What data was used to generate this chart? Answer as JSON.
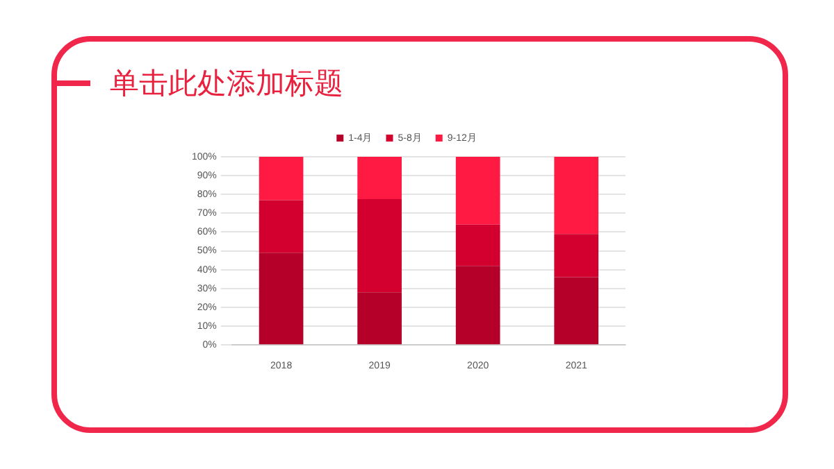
{
  "chart_data": {
    "type": "bar",
    "title": "单击此处添加标题",
    "stacked": true,
    "categories": [
      "2018",
      "2019",
      "2020",
      "2021"
    ],
    "series": [
      {
        "name": "1-4月",
        "color": "#b5002a",
        "values": [
          49,
          28,
          42,
          36
        ]
      },
      {
        "name": "5-8月",
        "color": "#d3002f",
        "values": [
          28,
          49.5,
          22,
          23
        ]
      },
      {
        "name": "9-12月",
        "color": "#ff1a44",
        "values": [
          23,
          22.5,
          36,
          41
        ]
      }
    ],
    "ylim": [
      0,
      100
    ],
    "yticks": [
      {
        "value": 0,
        "label": "0%"
      },
      {
        "value": 10,
        "label": "10%"
      },
      {
        "value": 20,
        "label": "20%"
      },
      {
        "value": 30,
        "label": "30%"
      },
      {
        "value": 40,
        "label": "40%"
      },
      {
        "value": 50,
        "label": "50%"
      },
      {
        "value": 60,
        "label": "60%"
      },
      {
        "value": 70,
        "label": "70%"
      },
      {
        "value": 80,
        "label": "80%"
      },
      {
        "value": 90,
        "label": "90%"
      },
      {
        "value": 100,
        "label": "100%"
      }
    ],
    "grid": "y",
    "legend": "top"
  }
}
